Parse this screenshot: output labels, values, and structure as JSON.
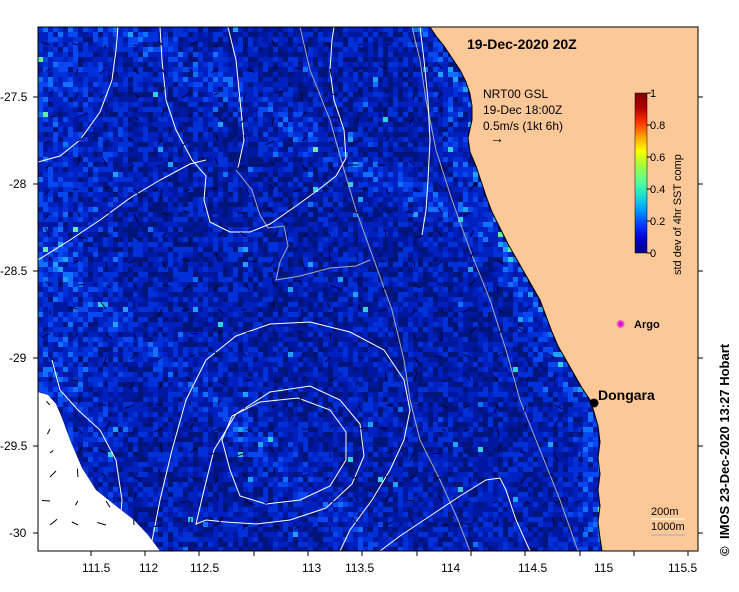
{
  "title": "19-Dec-2020 20Z",
  "current_legend": {
    "line1": "NRT00 GSL",
    "line2": "19-Dec 18:00Z",
    "line3": "0.5m/s (1kt 6h)",
    "arrow": "→"
  },
  "colorbar": {
    "label": "std dev of 4hr SST comp",
    "min": 0,
    "max": 1,
    "ticks": [
      "0",
      "0.2",
      "0.4",
      "0.6",
      "0.8",
      "1"
    ],
    "colors": [
      "#00007f",
      "#0000d0",
      "#0040ff",
      "#00a0ff",
      "#20e0d0",
      "#60ff90",
      "#a0ff40",
      "#ffff00",
      "#ffa000",
      "#ff3000",
      "#b00000",
      "#7f0000"
    ]
  },
  "places": [
    {
      "name": "Dongara",
      "lon": 114.93,
      "lat": -29.25
    },
    {
      "name": "Argo",
      "lon": 115.1,
      "lat": -28.88
    }
  ],
  "axes": {
    "x_ticks": [
      "111.5",
      "112",
      "112.5",
      "113",
      "113.5",
      "114",
      "114.5",
      "115",
      "115.5"
    ],
    "y_ticks": [
      "-27.5",
      "-28",
      "-28.5",
      "-29",
      "-29.5",
      "-30"
    ],
    "lon_range": [
      111.3,
      115.65
    ],
    "lat_range": [
      -27.0,
      -30.1
    ]
  },
  "isobaths": {
    "label_200": "200m",
    "label_1000": "1000m"
  },
  "credit": "IMOS 23-Dec-2020 13:27 Hobart",
  "copyright_symbol": "©",
  "colors": {
    "land": "#fcc898",
    "ocean_dark": "#00147a",
    "contour": "#ffffff"
  }
}
